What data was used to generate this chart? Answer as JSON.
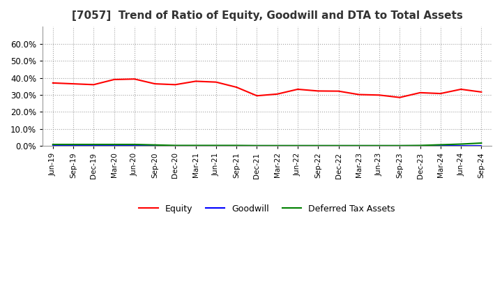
{
  "title": "[7057]  Trend of Ratio of Equity, Goodwill and DTA to Total Assets",
  "x_labels": [
    "Jun-19",
    "Sep-19",
    "Dec-19",
    "Mar-20",
    "Jun-20",
    "Sep-20",
    "Dec-20",
    "Mar-21",
    "Jun-21",
    "Sep-21",
    "Dec-21",
    "Mar-22",
    "Jun-22",
    "Sep-22",
    "Dec-22",
    "Mar-23",
    "Jun-23",
    "Sep-23",
    "Dec-23",
    "Mar-24",
    "Jun-24",
    "Sep-24"
  ],
  "equity": [
    0.37,
    0.365,
    0.36,
    0.39,
    0.393,
    0.365,
    0.36,
    0.38,
    0.375,
    0.345,
    0.295,
    0.305,
    0.333,
    0.323,
    0.322,
    0.302,
    0.299,
    0.285,
    0.313,
    0.308,
    0.333,
    0.317
  ],
  "goodwill": [
    0.0,
    0.0,
    0.0,
    0.0,
    0.0,
    0.0,
    0.0,
    0.0,
    0.0,
    0.0,
    0.0,
    0.0,
    0.0,
    0.0,
    0.0,
    0.0,
    0.0,
    0.0,
    0.0,
    0.0,
    0.0,
    0.0
  ],
  "dta": [
    0.01,
    0.01,
    0.01,
    0.01,
    0.01,
    0.007,
    0.004,
    0.004,
    0.004,
    0.004,
    0.003,
    0.003,
    0.003,
    0.003,
    0.003,
    0.003,
    0.003,
    0.003,
    0.004,
    0.008,
    0.012,
    0.018
  ],
  "equity_color": "#FF0000",
  "goodwill_color": "#0000FF",
  "dta_color": "#008000",
  "background_color": "#FFFFFF",
  "plot_bg_color": "#FFFFFF",
  "grid_color": "#999999",
  "ylim": [
    0.0,
    0.7
  ],
  "yticks": [
    0.0,
    0.1,
    0.2,
    0.3,
    0.4,
    0.5,
    0.6
  ],
  "title_fontsize": 11,
  "legend_labels": [
    "Equity",
    "Goodwill",
    "Deferred Tax Assets"
  ]
}
